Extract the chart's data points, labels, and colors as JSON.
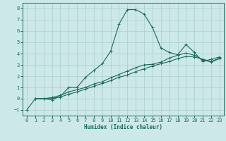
{
  "xlabel": "Humidex (Indice chaleur)",
  "background_color": "#cce8e8",
  "grid_color": "#aacece",
  "line_color": "#1a6b5a",
  "xlim": [
    -0.5,
    23.5
  ],
  "ylim": [
    -1.5,
    8.5
  ],
  "xticks": [
    0,
    1,
    2,
    3,
    4,
    5,
    6,
    7,
    8,
    9,
    10,
    11,
    12,
    13,
    14,
    15,
    16,
    17,
    18,
    19,
    20,
    21,
    22,
    23
  ],
  "yticks": [
    -1,
    0,
    1,
    2,
    3,
    4,
    5,
    6,
    7,
    8
  ],
  "series": [
    {
      "x": [
        0,
        1,
        2,
        3,
        4,
        5,
        6,
        7,
        8,
        9,
        10,
        11,
        12,
        13,
        14,
        15,
        16,
        17,
        18,
        19,
        20,
        21,
        22,
        23
      ],
      "y": [
        -1,
        0,
        0,
        -0.1,
        0.2,
        1.0,
        1.0,
        1.9,
        2.5,
        3.1,
        4.2,
        6.6,
        7.9,
        7.9,
        7.5,
        6.3,
        4.5,
        4.1,
        3.9,
        4.8,
        4.1,
        3.3,
        3.5,
        3.7
      ]
    },
    {
      "x": [
        1,
        2,
        3,
        4,
        5,
        6,
        7,
        8,
        9,
        10,
        11,
        12,
        13,
        14,
        15,
        16,
        17,
        18,
        19,
        20,
        21,
        22,
        23
      ],
      "y": [
        0,
        0,
        0.05,
        0.15,
        0.4,
        0.6,
        0.85,
        1.1,
        1.35,
        1.6,
        1.9,
        2.1,
        2.4,
        2.65,
        2.9,
        3.1,
        3.3,
        3.55,
        3.75,
        3.7,
        3.5,
        3.3,
        3.6
      ]
    },
    {
      "x": [
        1,
        2,
        3,
        4,
        5,
        6,
        7,
        8,
        9,
        10,
        11,
        12,
        13,
        14,
        15,
        16,
        17,
        18,
        19,
        20,
        21,
        22,
        23
      ],
      "y": [
        0,
        0,
        0.1,
        0.3,
        0.6,
        0.8,
        1.0,
        1.3,
        1.5,
        1.85,
        2.15,
        2.45,
        2.75,
        3.0,
        3.05,
        3.25,
        3.6,
        3.85,
        4.05,
        3.85,
        3.45,
        3.25,
        3.55
      ]
    }
  ]
}
